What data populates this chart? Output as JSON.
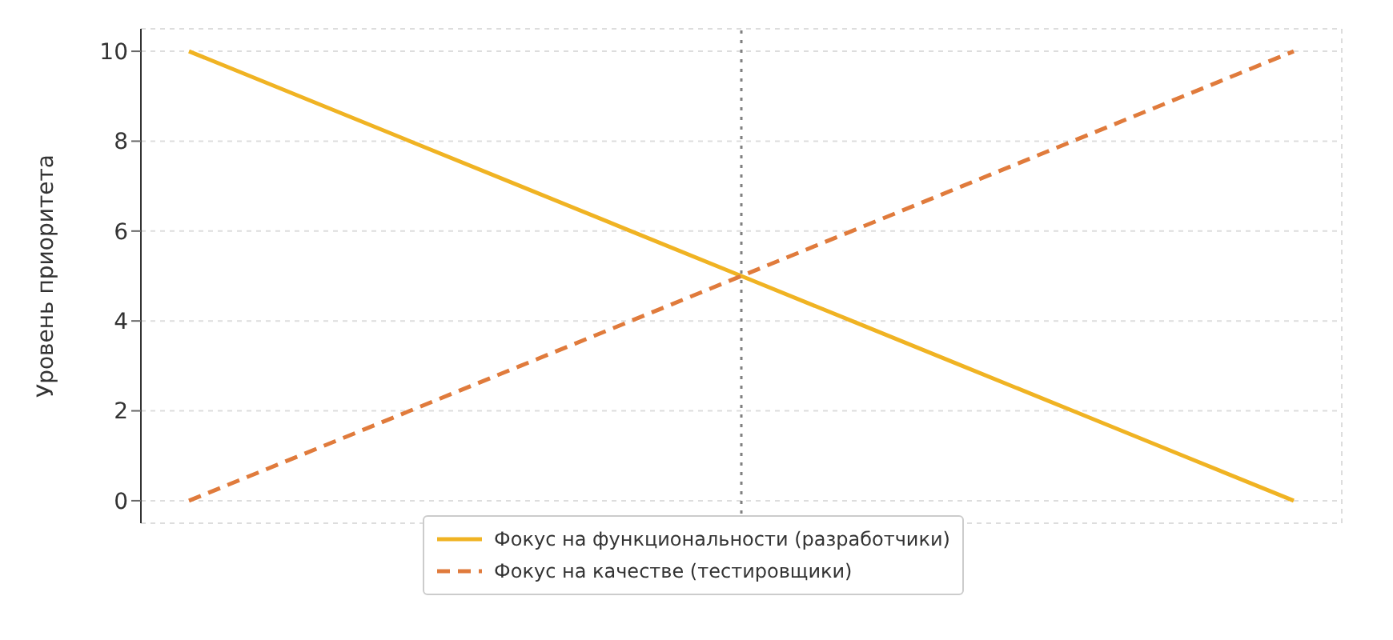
{
  "chart_data": {
    "type": "line",
    "ylabel": "Уровень приоритета",
    "categories": [
      null,
      null,
      null,
      null,
      null,
      null,
      null,
      null,
      null,
      null,
      null
    ],
    "series": [
      {
        "name": "Фокус на функциональности (разработчики)",
        "color": "#f0b323",
        "values": [
          10,
          9,
          8,
          7,
          6,
          5,
          4,
          3,
          2,
          1,
          0
        ],
        "line_style": "solid"
      },
      {
        "name": "Фокус на качестве (тестировщики)",
        "color": "#e07b3c",
        "values": [
          0,
          1,
          2,
          3,
          4,
          5,
          6,
          7,
          8,
          9,
          10
        ],
        "line_style": "dashed"
      }
    ],
    "ylim": [
      -0.5,
      10.5
    ],
    "yticks": [
      0,
      2,
      4,
      6,
      8,
      10
    ],
    "tick_labels": "y",
    "grid": true,
    "legend": "bottom",
    "marker": "none"
  }
}
